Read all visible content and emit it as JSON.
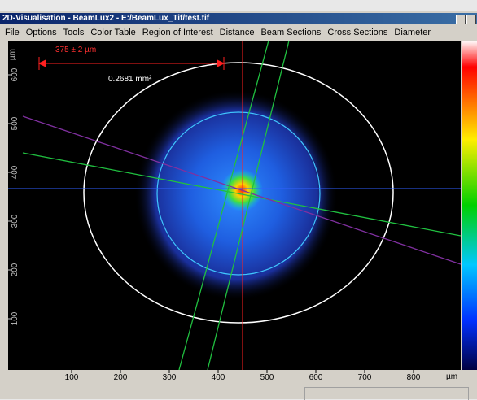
{
  "window": {
    "title": "2D-Visualisation - BeamLux2 - E:/BeamLux_Tif/test.tif"
  },
  "menu": [
    "File",
    "Options",
    "Tools",
    "Color Table",
    "Region of Interest",
    "Distance",
    "Beam Sections",
    "Cross Sections",
    "Diameter"
  ],
  "plot": {
    "x_unit": "µm",
    "y_unit": "µm",
    "xticks": [
      100,
      200,
      300,
      400,
      500,
      600,
      700,
      800
    ],
    "yticks": [
      100,
      200,
      300,
      400,
      500,
      600
    ],
    "annotations": {
      "width": "375 ± 2 µm",
      "area": "0.2681 mm²"
    }
  }
}
